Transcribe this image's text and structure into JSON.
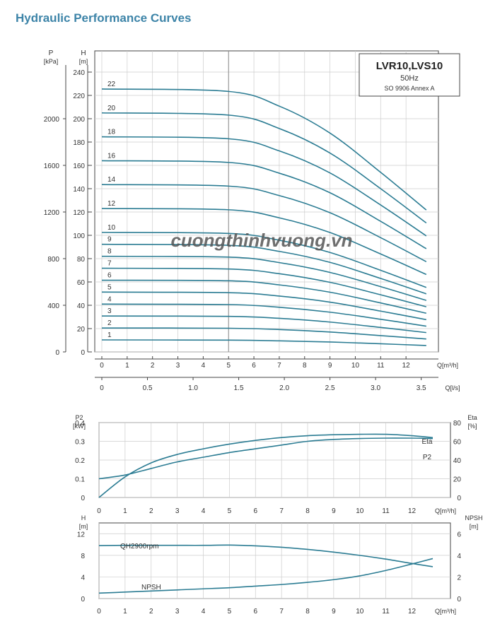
{
  "page_title": "Hydraulic Performance Curves",
  "watermark": "cuongthinhvuong.vn",
  "colors": {
    "curve": "#2b7c93",
    "axis": "#444444",
    "grid": "#cccccc",
    "title": "#3d84a8"
  },
  "chart_data": [
    {
      "id": "head_chart",
      "type": "line",
      "legend_title": "LVR10,LVS10",
      "legend_freq": "50Hz",
      "legend_std": "SO 9906 Annex A",
      "y_label_left_1": "P",
      "y_label_left_1_unit": "[kPa]",
      "y_label_left_2": "H",
      "y_label_left_2_unit": "[m]",
      "x_unit": "Q[m³/h]",
      "x2_unit": "Q[l/s]",
      "xlim": [
        0,
        13
      ],
      "ylim": [
        0,
        240
      ],
      "x_ticks": [
        0,
        1,
        2,
        3,
        4,
        5,
        6,
        7,
        8,
        9,
        10,
        11,
        12
      ],
      "x_tick_labels": [
        "0",
        "1",
        "2",
        "3",
        "4",
        "5",
        "6",
        "7",
        "8",
        "9",
        "10",
        "11",
        "12"
      ],
      "h_ticks": [
        0,
        20,
        40,
        60,
        80,
        100,
        120,
        140,
        160,
        180,
        200,
        220,
        240
      ],
      "h_tick_labels": [
        "0",
        "20",
        "40",
        "60",
        "80",
        "100",
        "120",
        "140",
        "160",
        "180",
        "200",
        "220",
        "240"
      ],
      "p_ticks": [
        0,
        400,
        800,
        1200,
        1600,
        2000
      ],
      "p_tick_labels": [
        "0",
        "400",
        "800",
        "1200",
        "1600",
        "2000"
      ],
      "x2_ticks": [
        0,
        0.5,
        1.0,
        1.5,
        2.0,
        2.5,
        3.0,
        3.5
      ],
      "x2_tick_labels": [
        "0",
        "0.5",
        "1.0",
        "1.5",
        "2.0",
        "2.5",
        "3.0",
        "3.5"
      ],
      "series": [
        {
          "name": "1",
          "label_pos": [
            0.8,
            13
          ],
          "x": [
            0,
            5,
            7,
            9,
            11,
            12.8
          ],
          "y": [
            10.3,
            10.1,
            9.5,
            8.5,
            7.0,
            5.5
          ]
        },
        {
          "name": "2",
          "label_pos": [
            0.8,
            30
          ],
          "x": [
            0,
            5,
            7,
            9,
            11,
            12.8
          ],
          "y": [
            20.5,
            20.3,
            19.2,
            17.1,
            14.0,
            11.1
          ]
        },
        {
          "name": "3",
          "label_pos": [
            0.8,
            47
          ],
          "x": [
            0,
            5,
            7,
            9,
            11,
            12.8
          ],
          "y": [
            30.8,
            30.5,
            28.8,
            25.6,
            21.0,
            16.6
          ]
        },
        {
          "name": "4",
          "label_pos": [
            0.8,
            64
          ],
          "x": [
            0,
            5,
            7,
            9,
            11,
            12.8
          ],
          "y": [
            41.0,
            40.6,
            38.3,
            34.1,
            28.0,
            22.1
          ]
        },
        {
          "name": "5",
          "label_pos": [
            0.8,
            81
          ],
          "x": [
            0,
            5,
            7,
            9,
            11,
            12.8
          ],
          "y": [
            51.3,
            50.8,
            47.9,
            42.7,
            35.0,
            27.7
          ]
        },
        {
          "name": "6",
          "label_pos": [
            0.8,
            98
          ],
          "x": [
            0,
            5,
            7,
            9,
            11,
            12.8
          ],
          "y": [
            61.5,
            61.0,
            57.5,
            51.2,
            42.0,
            33.2
          ]
        },
        {
          "name": "7",
          "label_pos": [
            0.8,
            115
          ],
          "x": [
            0,
            5,
            7,
            9,
            11,
            12.8
          ],
          "y": [
            71.8,
            71.1,
            67.1,
            59.7,
            49.0,
            38.7
          ]
        },
        {
          "name": "8",
          "label_pos": [
            0.8,
            132
          ],
          "x": [
            0,
            5,
            7,
            9,
            11,
            12.8
          ],
          "y": [
            82.0,
            81.3,
            76.6,
            68.2,
            56.0,
            44.2
          ]
        },
        {
          "name": "9",
          "label_pos": [
            0.8,
            149
          ],
          "x": [
            0,
            5,
            7,
            9,
            11,
            12.8
          ],
          "y": [
            92.3,
            91.4,
            86.2,
            76.8,
            63.0,
            49.8
          ]
        },
        {
          "name": "10",
          "label_pos": [
            0.8,
            166
          ],
          "x": [
            0,
            5,
            7,
            9,
            11,
            12.8
          ],
          "y": [
            102.5,
            101.6,
            95.8,
            85.3,
            70.0,
            55.3
          ]
        },
        {
          "name": "12",
          "label_pos": [
            0.8,
            183
          ],
          "x": [
            0,
            5,
            7,
            9,
            11,
            12.8
          ],
          "y": [
            123.0,
            121.9,
            115.0,
            102.4,
            84.0,
            66.4
          ]
        },
        {
          "name": "14",
          "label_pos": [
            0.8,
            200
          ],
          "x": [
            0,
            5,
            7,
            9,
            11,
            12.8
          ],
          "y": [
            143.5,
            142.2,
            134.1,
            119.4,
            98.0,
            77.4
          ]
        },
        {
          "name": "16",
          "label_pos": [
            0.8,
            217
          ],
          "x": [
            0,
            5,
            7,
            9,
            11,
            12.8
          ],
          "y": [
            164.0,
            162.5,
            153.3,
            136.5,
            112.0,
            88.5
          ]
        },
        {
          "name": "18",
          "label_pos": [
            0.8,
            234
          ],
          "x": [
            0,
            5,
            7,
            9,
            11,
            12.8
          ],
          "y": [
            184.5,
            182.8,
            172.4,
            153.5,
            126.0,
            99.5
          ]
        },
        {
          "name": "20",
          "label_pos": [
            0.8,
            251
          ],
          "x": [
            0,
            5,
            7,
            9,
            11,
            12.8
          ],
          "y": [
            205.0,
            203.1,
            191.6,
            170.6,
            140.0,
            110.6
          ]
        },
        {
          "name": "22",
          "label_pos": [
            0.8,
            268
          ],
          "x": [
            0,
            5,
            7,
            9,
            11,
            12.8
          ],
          "y": [
            225.5,
            223.4,
            210.8,
            187.7,
            154.0,
            121.7
          ]
        }
      ]
    },
    {
      "id": "power_chart",
      "type": "line",
      "y_label_left": "P2",
      "y_label_left_unit": "[kW]",
      "y_label_right": "Eta",
      "y_label_right_unit": "[%]",
      "x_unit": "Q[m³/h]",
      "xlim": [
        0,
        13
      ],
      "ylim": [
        0,
        0.4
      ],
      "y2lim": [
        0,
        80
      ],
      "x_ticks": [
        0,
        1,
        2,
        3,
        4,
        5,
        6,
        7,
        8,
        9,
        10,
        11,
        12
      ],
      "x_tick_labels": [
        "0",
        "1",
        "2",
        "3",
        "4",
        "5",
        "6",
        "7",
        "8",
        "9",
        "10",
        "11",
        "12"
      ],
      "y_ticks": [
        0,
        0.1,
        0.2,
        0.3,
        0.4
      ],
      "y_tick_labels": [
        "0",
        "0.1",
        "0.2",
        "0.3",
        "0.4"
      ],
      "y2_ticks": [
        0,
        20,
        40,
        60,
        80
      ],
      "y2_tick_labels": [
        "0",
        "20",
        "40",
        "60",
        "80"
      ],
      "series": [
        {
          "name": "Eta",
          "axis": "right",
          "x": [
            0,
            1,
            2,
            3,
            4,
            5,
            6,
            7,
            8,
            9,
            10,
            11,
            12,
            12.8
          ],
          "y": [
            0,
            22,
            37,
            46,
            52,
            57,
            61,
            64,
            66,
            67,
            67.5,
            67.5,
            66,
            64
          ]
        },
        {
          "name": "P2",
          "axis": "left",
          "x": [
            0,
            1,
            2,
            3,
            4,
            5,
            6,
            7,
            8,
            9,
            10,
            11,
            12,
            12.8
          ],
          "y": [
            0.1,
            0.12,
            0.155,
            0.19,
            0.215,
            0.24,
            0.26,
            0.28,
            0.3,
            0.31,
            0.315,
            0.317,
            0.317,
            0.315
          ]
        }
      ]
    },
    {
      "id": "npsh_chart",
      "type": "line",
      "y_label_left": "H",
      "y_label_left_unit": "[m]",
      "y_label_right": "NPSH",
      "y_label_right_unit": "[m]",
      "x_unit": "Q[m³/h]",
      "xlim": [
        0,
        13
      ],
      "ylim": [
        0,
        14
      ],
      "y2lim": [
        0,
        7
      ],
      "x_ticks": [
        0,
        1,
        2,
        3,
        4,
        5,
        6,
        7,
        8,
        9,
        10,
        11,
        12
      ],
      "x_tick_labels": [
        "0",
        "1",
        "2",
        "3",
        "4",
        "5",
        "6",
        "7",
        "8",
        "9",
        "10",
        "11",
        "12"
      ],
      "y_ticks": [
        0,
        4,
        8,
        12
      ],
      "y_tick_labels": [
        "0",
        "4",
        "8",
        "12"
      ],
      "y2_ticks": [
        0,
        2,
        4,
        6
      ],
      "y2_tick_labels": [
        "0",
        "2",
        "4",
        "6"
      ],
      "series": [
        {
          "name": "QH2900rpm",
          "axis": "left",
          "x": [
            0,
            1,
            2,
            3,
            4,
            5,
            6,
            7,
            8,
            9,
            10,
            11,
            12,
            12.8
          ],
          "y": [
            9.8,
            9.85,
            9.85,
            9.85,
            9.85,
            9.9,
            9.75,
            9.5,
            9.1,
            8.6,
            8.0,
            7.3,
            6.5,
            5.9
          ]
        },
        {
          "name": "NPSH",
          "axis": "right",
          "x": [
            0,
            1,
            2,
            3,
            4,
            5,
            6,
            7,
            8,
            9,
            10,
            11,
            12,
            12.8
          ],
          "y": [
            0.5,
            0.6,
            0.7,
            0.8,
            0.9,
            1.0,
            1.15,
            1.3,
            1.5,
            1.75,
            2.1,
            2.6,
            3.2,
            3.7
          ]
        }
      ]
    }
  ]
}
